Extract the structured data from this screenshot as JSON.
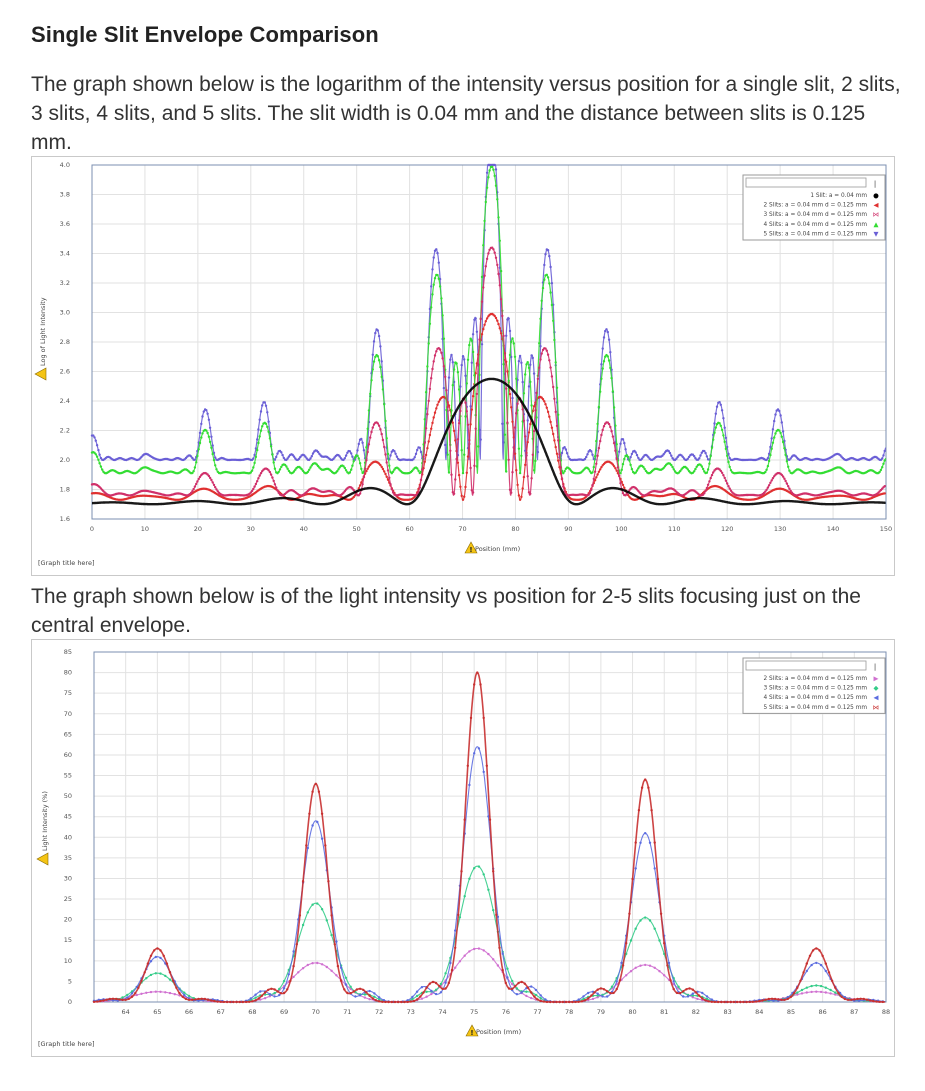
{
  "page": {
    "title": "Single Slit Envelope Comparison",
    "para1": "The graph shown below is the logarithm of the intensity versus position for a single slit, 2 slits, 3 slits, 4 slits, and 5 slits. The slit width is 0.04 mm and the distance between slits is 0.125 mm.",
    "para2": "The graph shown below is of the light intensity vs position for 2-5 slits focusing just on the central envelope."
  },
  "chart_data": [
    {
      "type": "line",
      "xlabel": "Position (mm)",
      "ylabel": "Log of Light Intensity",
      "xlim": [
        0,
        150
      ],
      "ylim": [
        1.6,
        4.0
      ],
      "xticks": [
        "0",
        "10",
        "20",
        "30",
        "40",
        "50",
        "60",
        "70",
        "80",
        "90",
        "100",
        "110",
        "120",
        "130",
        "140",
        "150"
      ],
      "yticks": [
        "1.6",
        "1.8",
        "2.0",
        "2.2",
        "2.4",
        "2.6",
        "2.8",
        "3.0",
        "3.2",
        "3.4",
        "3.6",
        "3.8",
        "4.0"
      ],
      "graph_title_placeholder": "[Graph title here]",
      "legend_input": "",
      "legend_button": "|",
      "series": [
        {
          "name": "1 Slit: a = 0.04 mm",
          "color": "#000000",
          "marker": "●"
        },
        {
          "name": "2 Slits: a = 0.04 mm d = 0.125 mm",
          "color": "#e03030",
          "marker": "◀"
        },
        {
          "name": "3 Slits: a = 0.04 mm d = 0.125 mm",
          "color": "#d0306a",
          "marker": "⋈"
        },
        {
          "name": "4 Slits: a = 0.04 mm d = 0.125 mm",
          "color": "#33dd33",
          "marker": "▲"
        },
        {
          "name": "5 Slits: a = 0.04 mm d = 0.125 mm",
          "color": "#6a5fd6",
          "marker": "▼"
        }
      ],
      "model": {
        "center": 75.5,
        "period": 10.8,
        "env_width": 16.0,
        "floor": 1.7,
        "env_peak": 2.55,
        "peak_log": {
          "2": 2.96,
          "3": 3.38,
          "4": 3.78,
          "5": 3.88
        }
      }
    },
    {
      "type": "line",
      "xlabel": "Position (mm)",
      "ylabel": "Light Intensity (%)",
      "xlim": [
        63,
        88
      ],
      "ylim": [
        0,
        85
      ],
      "xticks": [
        "64",
        "65",
        "66",
        "67",
        "68",
        "69",
        "70",
        "71",
        "72",
        "73",
        "74",
        "75",
        "76",
        "77",
        "78",
        "79",
        "80",
        "81",
        "82",
        "83",
        "84",
        "85",
        "86",
        "87",
        "88"
      ],
      "yticks": [
        "0",
        "5",
        "10",
        "15",
        "20",
        "25",
        "30",
        "35",
        "40",
        "45",
        "50",
        "55",
        "60",
        "65",
        "70",
        "75",
        "80",
        "85"
      ],
      "graph_title_placeholder": "[Graph title here]",
      "legend_input": "",
      "legend_button": "|",
      "series": [
        {
          "name": "2 Slits: a = 0.04 mm d = 0.125 mm",
          "color": "#d070d0",
          "marker": "▶"
        },
        {
          "name": "3 Slits: a = 0.04 mm d = 0.125 mm",
          "color": "#33cc88",
          "marker": "◆"
        },
        {
          "name": "4 Slits: a = 0.04 mm d = 0.125 mm",
          "color": "#5b6ce0",
          "marker": "◀"
        },
        {
          "name": "5 Slits: a = 0.04 mm d = 0.125 mm",
          "color": "#c83030",
          "marker": "⋈"
        }
      ],
      "peaks": {
        "positions": [
          65.0,
          70.0,
          75.1,
          80.4,
          85.8
        ],
        "2": [
          2.5,
          9.5,
          13,
          9,
          2.5
        ],
        "3": [
          7,
          24,
          33,
          20.5,
          4
        ],
        "4": [
          11,
          44,
          62,
          41,
          9.5
        ],
        "5": [
          13,
          53,
          80,
          54,
          13
        ]
      }
    }
  ]
}
